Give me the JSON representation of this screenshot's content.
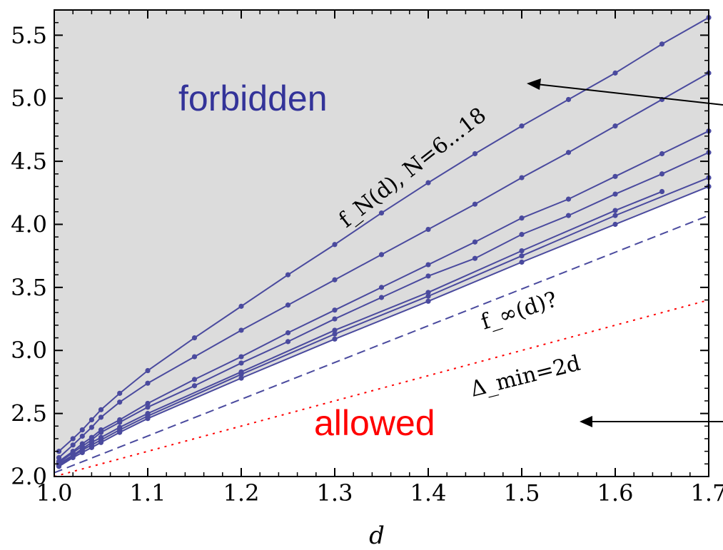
{
  "chart_data": {
    "type": "line",
    "title": "",
    "xlabel": "d",
    "ylabel": "",
    "xlim": [
      1.0,
      1.7
    ],
    "ylim": [
      2.0,
      5.7
    ],
    "x_ticks": [
      "1.0",
      "1.1",
      "1.2",
      "1.3",
      "1.4",
      "1.5",
      "1.6",
      "1.7"
    ],
    "y_ticks": [
      "2.0",
      "2.5",
      "3.0",
      "3.5",
      "4.0",
      "4.5",
      "5.0",
      "5.5"
    ],
    "grid": false,
    "colors": {
      "series": "#4a4a9e",
      "forbidden_fill": "#dcdcdc",
      "forbidden_text": "#333399",
      "allowed_text": "#ff0000",
      "bound_line": "#ff0000"
    },
    "region_labels": {
      "forbidden": "forbidden",
      "allowed": "allowed"
    },
    "annotations": {
      "fN": "f_N(d), N=6...18",
      "finf": "f_∞(d)?",
      "delta_min": "Δ_min=2d"
    },
    "series": [
      {
        "x": [
          1.005,
          1.02,
          1.03,
          1.04,
          1.05,
          1.07,
          1.1,
          1.15,
          1.2,
          1.25,
          1.3,
          1.35,
          1.4,
          1.45,
          1.5,
          1.55,
          1.6,
          1.65,
          1.7
        ],
        "values": [
          2.2,
          2.3,
          2.37,
          2.45,
          2.53,
          2.66,
          2.84,
          3.1,
          3.35,
          3.6,
          3.84,
          4.09,
          4.33,
          4.56,
          4.78,
          4.99,
          5.2,
          5.43,
          5.64
        ]
      },
      {
        "x": [
          1.005,
          1.02,
          1.03,
          1.04,
          1.05,
          1.07,
          1.1,
          1.15,
          1.2,
          1.25,
          1.3,
          1.35,
          1.4,
          1.45,
          1.5,
          1.55,
          1.6,
          1.65,
          1.7
        ],
        "values": [
          2.15,
          2.25,
          2.32,
          2.39,
          2.47,
          2.59,
          2.74,
          2.95,
          3.16,
          3.36,
          3.56,
          3.76,
          3.96,
          4.16,
          4.37,
          4.57,
          4.78,
          4.99,
          5.2
        ]
      },
      {
        "x": [
          1.005,
          1.02,
          1.03,
          1.04,
          1.05,
          1.07,
          1.1,
          1.15,
          1.2,
          1.25,
          1.3,
          1.35,
          1.4,
          1.45,
          1.5,
          1.55,
          1.6,
          1.65,
          1.7
        ],
        "values": [
          2.12,
          2.2,
          2.26,
          2.31,
          2.37,
          2.45,
          2.58,
          2.77,
          2.95,
          3.14,
          3.32,
          3.5,
          3.68,
          3.86,
          4.05,
          4.2,
          4.38,
          4.56,
          4.74
        ]
      },
      {
        "x": [
          1.005,
          1.02,
          1.03,
          1.04,
          1.05,
          1.07,
          1.1,
          1.15,
          1.2,
          1.25,
          1.3,
          1.35,
          1.4,
          1.45,
          1.5,
          1.55,
          1.6,
          1.65,
          1.7
        ],
        "values": [
          2.11,
          2.19,
          2.24,
          2.29,
          2.35,
          2.43,
          2.55,
          2.72,
          2.9,
          3.07,
          3.25,
          3.42,
          3.59,
          3.73,
          3.92,
          4.07,
          4.24,
          4.4,
          4.57
        ]
      },
      {
        "x": [
          1.005,
          1.02,
          1.03,
          1.04,
          1.05,
          1.07,
          1.1,
          1.2,
          1.3,
          1.4,
          1.5,
          1.6,
          1.65
        ],
        "values": [
          2.1,
          2.17,
          2.22,
          2.27,
          2.31,
          2.39,
          2.5,
          2.83,
          3.16,
          3.46,
          3.79,
          4.11,
          4.26
        ]
      },
      {
        "x": [
          1.005,
          1.02,
          1.03,
          1.04,
          1.05,
          1.07,
          1.1,
          1.2,
          1.3,
          1.4,
          1.5,
          1.6,
          1.7
        ],
        "values": [
          2.09,
          2.16,
          2.21,
          2.25,
          2.29,
          2.37,
          2.48,
          2.81,
          3.13,
          3.43,
          3.75,
          4.07,
          4.37
        ]
      },
      {
        "x": [
          1.005,
          1.02,
          1.03,
          1.04,
          1.05,
          1.07,
          1.1,
          1.2,
          1.3,
          1.4,
          1.5,
          1.6,
          1.7
        ],
        "values": [
          2.08,
          2.15,
          2.19,
          2.23,
          2.27,
          2.35,
          2.46,
          2.78,
          3.09,
          3.39,
          3.7,
          4.0,
          4.3
        ]
      }
    ],
    "finf_line": {
      "x": [
        1.0,
        1.7
      ],
      "values": [
        2.03,
        4.07
      ]
    },
    "bound_line": {
      "x": [
        1.0,
        1.7
      ],
      "values": [
        2.0,
        3.4
      ]
    }
  }
}
